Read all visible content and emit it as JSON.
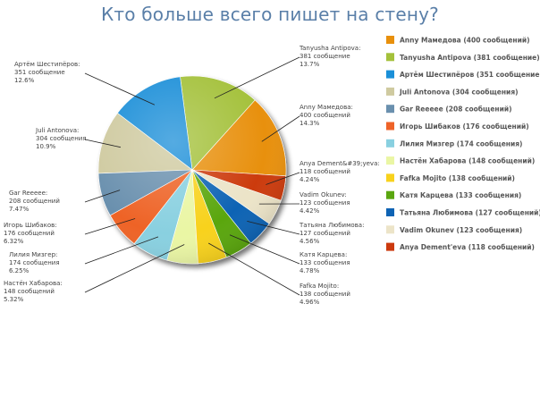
{
  "chart_data": {
    "type": "pie",
    "title": "Кто больше всего пишет на стену?",
    "unit_label": "сообщений",
    "slices": [
      {
        "name": "Anny Мамедова",
        "value": 400,
        "count_text": "400 сообщений",
        "percent": "14.3%",
        "legend": "Anny Мамедова (400 сообщений)",
        "color": "#e8900c"
      },
      {
        "name": "Tanyusha Antipova",
        "value": 381,
        "count_text": "381 сообщение",
        "percent": "13.7%",
        "legend": "Tanyusha Antipova (381 сообщение)",
        "color": "#a4c13b"
      },
      {
        "name": "Артём Шестипёров",
        "value": 351,
        "count_text": "351 сообщение",
        "percent": "12.6%",
        "legend": "Артём Шестипёров (351 сообщение)",
        "color": "#1a8fd8"
      },
      {
        "name": "Juli Antonova",
        "value": 304,
        "count_text": "304 сообщения",
        "percent": "10.9%",
        "legend": "Juli Antonova (304 сообщения)",
        "color": "#cfcaa0"
      },
      {
        "name": "Gar Reeeee",
        "value": 208,
        "count_text": "208 сообщений",
        "percent": "7.47%",
        "legend": "Gar Reeeee (208 сообщений)",
        "color": "#6a90ae"
      },
      {
        "name": "Игорь Шибаков",
        "value": 176,
        "count_text": "176 сообщений",
        "percent": "6.32%",
        "legend": "Игорь Шибаков (176 сообщений)",
        "color": "#ee6328"
      },
      {
        "name": "Лилия Мизгер",
        "value": 174,
        "count_text": "174 сообщения",
        "percent": "6.25%",
        "legend": "Лилия Мизгер (174 сообщения)",
        "color": "#89d0e0"
      },
      {
        "name": "Настён Хабарова",
        "value": 148,
        "count_text": "148 сообщений",
        "percent": "5.32%",
        "legend": "Настён Хабарова (148 сообщений)",
        "color": "#eaf6a4"
      },
      {
        "name": "Fafka Mojito",
        "value": 138,
        "count_text": "138 сообщений",
        "percent": "4.96%",
        "legend": "Fafka Mojito (138 сообщений)",
        "color": "#f8d21c"
      },
      {
        "name": "Катя Карцева",
        "value": 133,
        "count_text": "133 сообщения",
        "percent": "4.78%",
        "legend": "Катя Карцева (133 сообщения)",
        "color": "#5aa610"
      },
      {
        "name": "Татьяна Любимова",
        "value": 127,
        "count_text": "127 сообщений",
        "percent": "4.56%",
        "legend": "Татьяна Любимова (127 сообщений)",
        "color": "#0e63b4"
      },
      {
        "name": "Vadim Okunev",
        "value": 123,
        "count_text": "123 сообщения",
        "percent": "4.42%",
        "legend": "Vadim Okunev (123 сообщения)",
        "color": "#ece4c8"
      },
      {
        "name": "Anya Dement&#39;yeva",
        "value": 118,
        "count_text": "118 сообщений",
        "percent": "4.24%",
        "legend": "Anya Dement'eva (118 сообщений)",
        "color": "#cc3a0e"
      }
    ],
    "legend_position": "right"
  }
}
